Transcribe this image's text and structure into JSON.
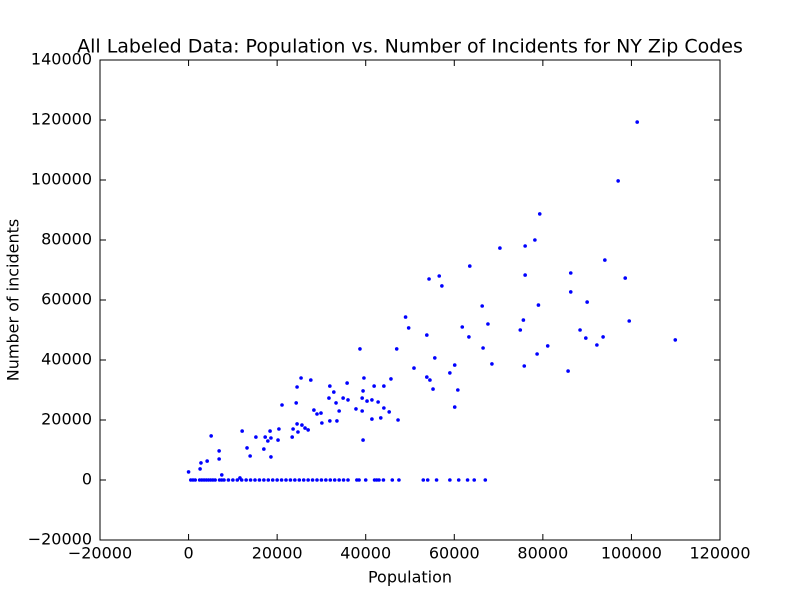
{
  "chart_data": {
    "type": "scatter",
    "title": "All Labeled Data: Population vs. Number of Incidents for NY Zip Codes",
    "xlabel": "Population",
    "ylabel": "Number of incidents",
    "color": "#0000ff",
    "xlim": [
      -20000,
      120000
    ],
    "xticks": [
      {
        "value": -20000,
        "label": "−20000"
      },
      0,
      20000,
      40000,
      60000,
      80000,
      100000,
      120000
    ],
    "ylim": [
      -20000,
      140000
    ],
    "yticks": [
      {
        "value": -20000,
        "label": "−20000"
      },
      0,
      20000,
      40000,
      60000,
      80000,
      100000,
      120000,
      140000
    ],
    "grid": false,
    "x": [
      101300,
      97000,
      79300,
      70300,
      76000,
      78200,
      94000,
      63500,
      76000,
      86300,
      98600,
      54300,
      56600,
      57200,
      86300,
      90000,
      79000,
      66300,
      49000,
      99500,
      75600,
      67600,
      61800,
      49700,
      74900,
      88400,
      53800,
      63300,
      89700,
      93600,
      109900,
      81100,
      92200,
      66500,
      47000,
      38700,
      78700,
      55600,
      60100,
      68500,
      75800,
      50900,
      85700,
      59000,
      53800,
      54500,
      25400,
      27600,
      39600,
      45700,
      35800,
      24500,
      31900,
      41900,
      44100,
      55200,
      60800,
      32800,
      39400,
      34900,
      39200,
      31700,
      41400,
      40300,
      42800,
      33300,
      36000,
      24300,
      21100,
      44100,
      37800,
      28300,
      29900,
      34000,
      39200,
      45300,
      29000,
      60100,
      43400,
      41400,
      47300,
      33500,
      31900,
      30100,
      24500,
      25600,
      26300,
      27000,
      23600,
      24700,
      20400,
      18400,
      12100,
      23400,
      15200,
      17300,
      18600,
      20200,
      39400,
      17900,
      5100,
      13200,
      17000,
      6900,
      13900,
      18600,
      6900,
      4200,
      2800,
      2600,
      0,
      7500,
      11600,
      500,
      1000,
      1500,
      2500,
      3000,
      3500,
      4000,
      4500,
      5000,
      5500,
      6000,
      7000,
      7500,
      8000,
      9000,
      10000,
      11000,
      12000,
      13000,
      14000,
      15000,
      16000,
      17000,
      18000,
      19000,
      20000,
      21000,
      22000,
      23000,
      24000,
      25000,
      26000,
      27000,
      28000,
      29000,
      30000,
      31000,
      32000,
      33000,
      34000,
      35000,
      36000,
      38000,
      38500,
      40000,
      42000,
      42500,
      43000,
      44000,
      46000,
      47500,
      53000,
      54000,
      56000,
      59000,
      61000,
      63000,
      64500,
      67000
    ],
    "values": [
      119300,
      99700,
      88700,
      77300,
      78000,
      80000,
      73300,
      71300,
      68300,
      69000,
      67300,
      67000,
      68000,
      64700,
      62700,
      59300,
      58300,
      58000,
      54300,
      53000,
      53300,
      52000,
      51000,
      50700,
      50000,
      50000,
      48300,
      47700,
      47300,
      47700,
      46700,
      44700,
      45000,
      44000,
      43700,
      43700,
      42000,
      40700,
      38300,
      38700,
      38000,
      37300,
      36300,
      35700,
      34300,
      33300,
      34000,
      33300,
      34000,
      33700,
      32300,
      31000,
      31300,
      31300,
      31300,
      30300,
      30000,
      29300,
      29700,
      27300,
      27300,
      27300,
      26700,
      26300,
      26000,
      25700,
      26700,
      25700,
      25000,
      24000,
      23700,
      23300,
      22300,
      23000,
      23000,
      22700,
      22000,
      24300,
      20700,
      20300,
      20000,
      19700,
      19700,
      19000,
      18700,
      18300,
      17300,
      16700,
      17000,
      16000,
      17000,
      16300,
      16300,
      14300,
      14300,
      14300,
      14000,
      13300,
      13300,
      13000,
      14700,
      10700,
      10300,
      9700,
      8000,
      7700,
      7000,
      6300,
      5700,
      3700,
      2700,
      1700,
      700,
      0,
      0,
      0,
      0,
      0,
      0,
      0,
      0,
      0,
      0,
      0,
      0,
      0,
      0,
      0,
      0,
      0,
      0,
      0,
      0,
      0,
      0,
      0,
      0,
      0,
      0,
      0,
      0,
      0,
      0,
      0,
      0,
      0,
      0,
      0,
      0,
      0,
      0,
      0,
      0,
      0,
      0,
      0,
      0,
      0,
      0,
      0,
      0,
      0,
      0,
      0,
      0,
      0,
      0,
      0,
      0,
      0,
      0,
      0
    ]
  }
}
